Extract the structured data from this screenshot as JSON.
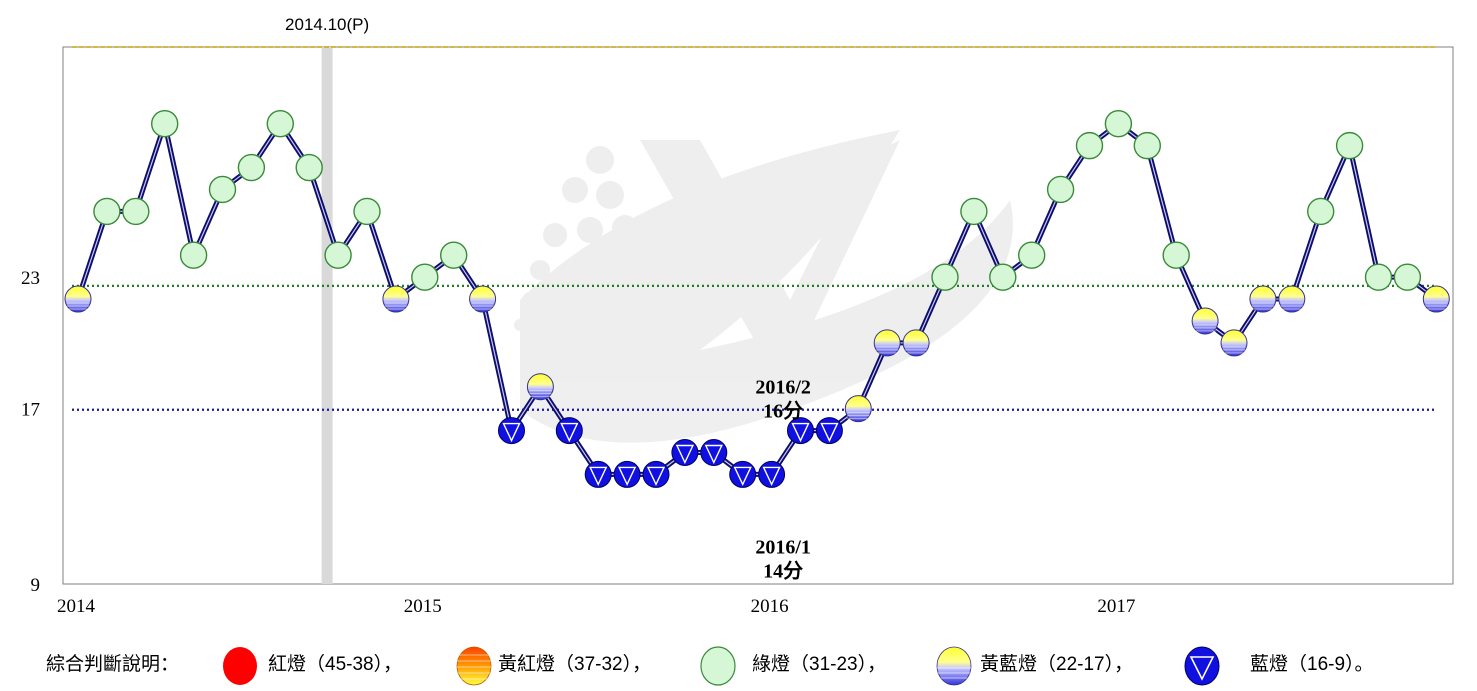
{
  "chart_data": {
    "type": "line",
    "title": "",
    "xlabel": "",
    "ylabel": "",
    "x_ticks": [
      "2014",
      "2015",
      "2016",
      "2017"
    ],
    "y_ticks": [
      "9",
      "17",
      "23"
    ],
    "ylim": [
      9,
      33.5
    ],
    "months_per_year": 12,
    "first_month_index": 0,
    "series": [
      {
        "values": [
          22,
          26,
          26,
          30,
          24,
          27,
          28,
          30,
          28,
          24,
          26,
          22,
          23,
          24,
          22,
          16,
          18,
          16,
          14,
          14,
          14,
          15,
          15,
          14,
          14,
          16,
          16,
          17,
          20,
          20,
          23,
          26,
          23,
          24,
          27,
          29,
          30,
          29,
          24,
          21,
          20,
          22,
          22,
          26,
          29,
          23,
          23,
          22
        ]
      }
    ],
    "reference_lines": [
      {
        "value": 33.5,
        "color": "#c8a400"
      },
      {
        "value": 22.6,
        "color": "#1e7d1e"
      },
      {
        "value": 16.95,
        "color": "#1a1aa0"
      }
    ],
    "vertical_marker": {
      "month_index": 9,
      "label": "2014.10(P)"
    },
    "annotations": [
      {
        "month_index": 24.4,
        "value": 17.7,
        "line1": "2016/2",
        "line2": "16分"
      },
      {
        "month_index": 24.4,
        "value": 10.4,
        "line1": "2016/1",
        "line2": "14分"
      }
    ],
    "colors": {
      "line": "#0d0d6e",
      "axis": "#808080",
      "red": "#ff0000",
      "green_fill": "#d6f7d6",
      "green_stroke": "#3a8a3a",
      "yellow": "#ffff40",
      "blue": "#1010e0",
      "marker_band": "#d9d9d9"
    }
  },
  "legend": {
    "title": "綜合判斷說明：",
    "items": [
      {
        "label": "紅燈（45-38），",
        "icon": "red-light-icon"
      },
      {
        "label": "黃紅燈（37-32），",
        "icon": "yellow-red-light-icon"
      },
      {
        "label": "綠燈（31-23），",
        "icon": "green-light-icon"
      },
      {
        "label": "黃藍燈（22-17），",
        "icon": "yellow-blue-light-icon"
      },
      {
        "label": "藍燈（16-9）。",
        "icon": "blue-light-icon"
      }
    ]
  }
}
